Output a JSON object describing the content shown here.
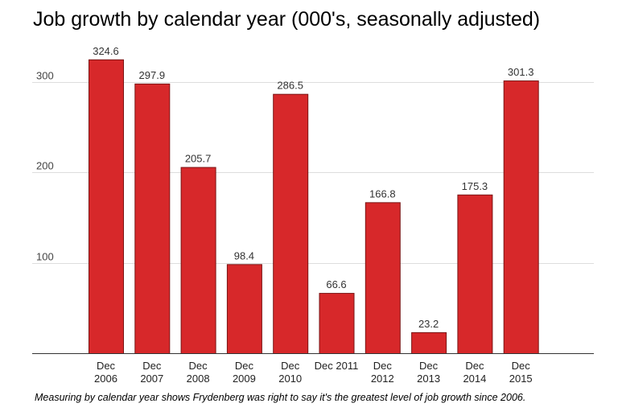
{
  "chart_data": {
    "type": "bar",
    "title": "Job growth by calendar year (000's, seasonally adjusted)",
    "xlabel": "",
    "ylabel": "",
    "categories": [
      [
        "Dec",
        "2006"
      ],
      [
        "Dec",
        "2007"
      ],
      [
        "Dec",
        "2008"
      ],
      [
        "Dec",
        "2009"
      ],
      [
        "Dec",
        "2010"
      ],
      [
        "Dec 2011"
      ],
      [
        "Dec",
        "2012"
      ],
      [
        "Dec",
        "2013"
      ],
      [
        "Dec",
        "2014"
      ],
      [
        "Dec",
        "2015"
      ]
    ],
    "values": [
      324.6,
      297.9,
      205.7,
      98.4,
      286.5,
      66.6,
      166.8,
      23.2,
      175.3,
      301.3
    ],
    "value_labels": [
      "324.6",
      "297.9",
      "205.7",
      "98.4",
      "286.5",
      "66.6",
      "166.8",
      "23.2",
      "175.3",
      "301.3"
    ],
    "y_ticks": [
      100,
      200,
      300
    ],
    "ylim": [
      0,
      340
    ],
    "grid": true,
    "legend": "none",
    "bar_color": "#d7282a",
    "bar_edge_color": "#7a1515",
    "grid_color": "#dddddd",
    "caption": "Measuring by calendar year shows Frydenberg was right to say it's the greatest level of job growth since 2006."
  }
}
